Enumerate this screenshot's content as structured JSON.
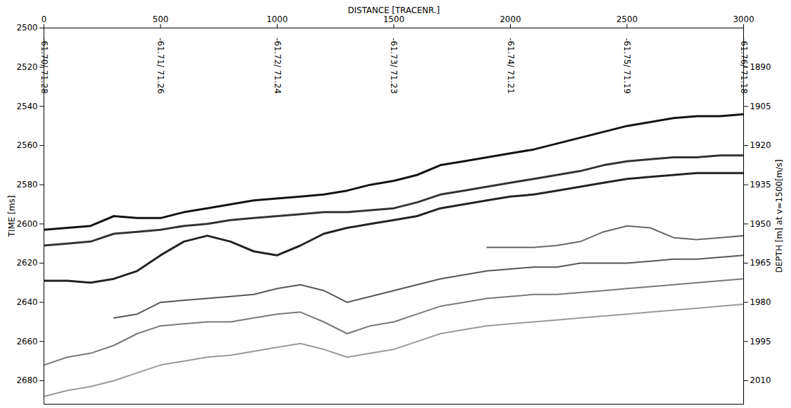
{
  "chart_data": {
    "type": "line",
    "x_label": "DISTANCE [TRACENR.]",
    "y_label": "TIME [ms]",
    "y2_label": "DEPTH [m] at v=1500[m/s]",
    "xlim": [
      0,
      3000
    ],
    "xticks": [
      0,
      500,
      1000,
      1500,
      2000,
      2500,
      3000
    ],
    "ylim": [
      2500,
      2692
    ],
    "yticks": [
      2500,
      2520,
      2540,
      2560,
      2580,
      2600,
      2620,
      2640,
      2660,
      2680
    ],
    "y2lim": [
      1875,
      2019
    ],
    "y2ticks": [
      1890,
      1905,
      1920,
      1935,
      1950,
      1965,
      1980,
      1995,
      2010
    ],
    "x": [
      0,
      100,
      200,
      300,
      400,
      500,
      600,
      700,
      800,
      900,
      1000,
      1100,
      1200,
      1300,
      1400,
      1500,
      1600,
      1700,
      1800,
      1900,
      2000,
      2100,
      2200,
      2300,
      2400,
      2500,
      2600,
      2700,
      2800,
      2900,
      3000
    ],
    "series": [
      {
        "color": "#111111",
        "line_style": "solid",
        "values": [
          2603,
          2602,
          2601,
          2596,
          2597,
          2597,
          2594,
          2592,
          2590,
          2588,
          2587,
          2586,
          2585,
          2583,
          2580,
          2578,
          2575,
          2570,
          2568,
          2566,
          2564,
          2562,
          2559,
          2556,
          2553,
          2550,
          2548,
          2546,
          2545,
          2545,
          2544
        ]
      },
      {
        "color": "#333333",
        "line_style": "solid",
        "values": [
          2611,
          2610,
          2609,
          2605,
          2604,
          2603,
          2601,
          2600,
          2598,
          2597,
          2596,
          2595,
          2594,
          2594,
          2593,
          2592,
          2589,
          2585,
          2583,
          2581,
          2579,
          2577,
          2575,
          2573,
          2570,
          2568,
          2567,
          2566,
          2566,
          2565,
          2565
        ]
      },
      {
        "color": "#222222",
        "line_style": "solid",
        "values": [
          2629,
          2629,
          2630,
          2628,
          2624,
          2616,
          2609,
          2606,
          2609,
          2614,
          2616,
          2611,
          2605,
          2602,
          2600,
          2598,
          2596,
          2592,
          2590,
          2588,
          2586,
          2585,
          2583,
          2581,
          2579,
          2577,
          2576,
          2575,
          2574,
          2574,
          2574
        ]
      },
      {
        "color": "#666666",
        "line_style": "solid",
        "values": [
          null,
          null,
          null,
          null,
          null,
          null,
          null,
          null,
          null,
          null,
          null,
          null,
          null,
          null,
          null,
          null,
          null,
          null,
          null,
          2612,
          2612,
          2612,
          2611,
          2609,
          2604,
          2601,
          2602,
          2607,
          2608,
          2607,
          2606
        ]
      },
      {
        "color": "#555555",
        "line_style": "solid",
        "values": [
          null,
          null,
          null,
          2648,
          2646,
          2640,
          2639,
          2638,
          2637,
          2636,
          2633,
          2631,
          2634,
          2640,
          2637,
          2634,
          2631,
          2628,
          2626,
          2624,
          2623,
          2622,
          2622,
          2620,
          2620,
          2620,
          2619,
          2618,
          2618,
          2617,
          2616
        ]
      },
      {
        "color": "#777777",
        "line_style": "solid",
        "values": [
          2672,
          2668,
          2666,
          2662,
          2656,
          2652,
          2651,
          2650,
          2650,
          2648,
          2646,
          2645,
          2650,
          2656,
          2652,
          2650,
          2646,
          2642,
          2640,
          2638,
          2637,
          2636,
          2636,
          2635,
          2634,
          2633,
          2632,
          2631,
          2630,
          2629,
          2628
        ]
      },
      {
        "color": "#999999",
        "line_style": "solid",
        "values": [
          2688,
          2685,
          2683,
          2680,
          2676,
          2672,
          2670,
          2668,
          2667,
          2665,
          2663,
          2661,
          2664,
          2668,
          2666,
          2664,
          2660,
          2656,
          2654,
          2652,
          2651,
          2650,
          2649,
          2648,
          2647,
          2646,
          2645,
          2644,
          2643,
          2642,
          2641
        ]
      }
    ],
    "annotations": [
      {
        "x": 0,
        "y": 2505,
        "text": "-61.70/ 71.28"
      },
      {
        "x": 500,
        "y": 2505,
        "text": "-61.71/ 71.26"
      },
      {
        "x": 1000,
        "y": 2505,
        "text": "-61.72/ 71.24"
      },
      {
        "x": 1500,
        "y": 2505,
        "text": "-61.73/ 71.23"
      },
      {
        "x": 2000,
        "y": 2505,
        "text": "-61.74/ 71.21"
      },
      {
        "x": 2500,
        "y": 2505,
        "text": "-61.75/ 71.19"
      },
      {
        "x": 3000,
        "y": 2505,
        "text": "-61.76/ 71.18"
      }
    ]
  }
}
